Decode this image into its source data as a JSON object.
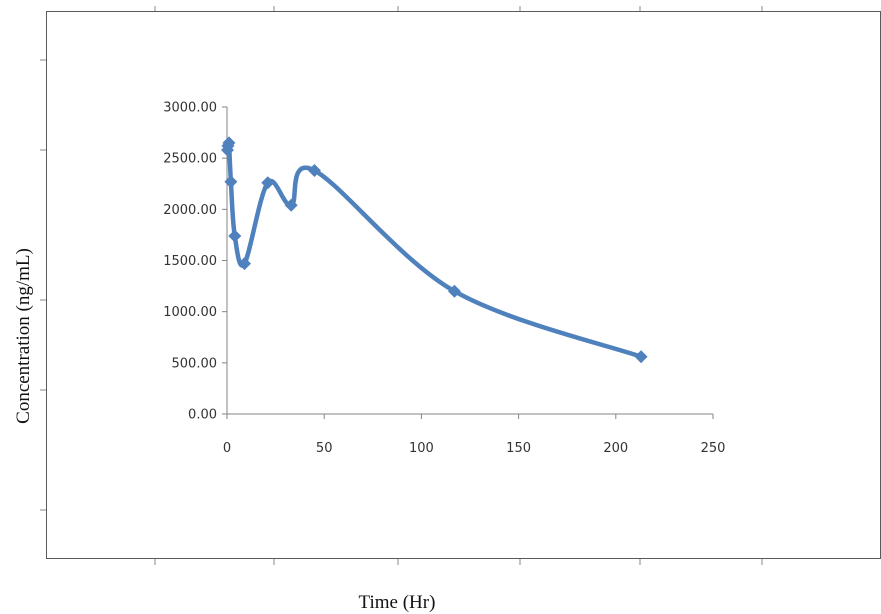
{
  "chart_data": {
    "type": "line",
    "xlabel": "Time (Hr)",
    "ylabel": "Concentration (ng/mL)",
    "xlim": [
      0,
      250
    ],
    "ylim": [
      0,
      3000
    ],
    "x_ticks": [
      "0",
      "50",
      "100",
      "150",
      "200",
      "250"
    ],
    "y_ticks": [
      "0.00",
      "500.00",
      "1000.00",
      "1500.00",
      "2000.00",
      "2500.00",
      "3000.00"
    ],
    "grid": false,
    "legend": "none",
    "smoothed": true,
    "marker": "diamond",
    "series": [
      {
        "color": "#4f81bd",
        "x": [
          0.25,
          0.5,
          1,
          2,
          4,
          9,
          21,
          33,
          45,
          117,
          213
        ],
        "y": [
          2580,
          2620,
          2650,
          2270,
          1740,
          1470,
          2260,
          2040,
          2380,
          1200,
          560
        ]
      }
    ]
  }
}
